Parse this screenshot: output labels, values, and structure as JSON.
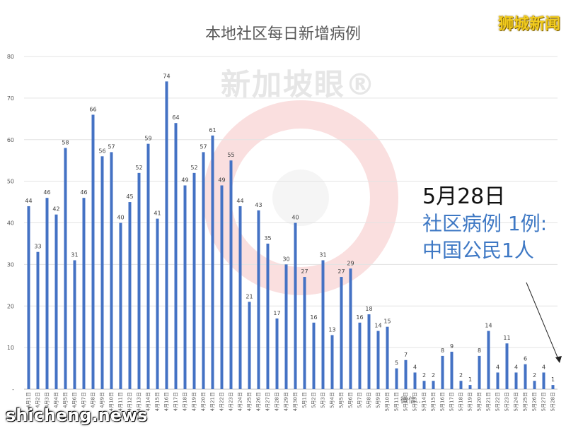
{
  "header": {
    "title": "本地社区每日新增病例",
    "brand": "狮城新闻"
  },
  "watermark": {
    "text": "新加坡眼®"
  },
  "callout": {
    "date": "5月28日",
    "line1": "社区病例 1例:",
    "line2": "中国公民1人"
  },
  "footer": {
    "site": "shicheng.news",
    "wechat": "微信..."
  },
  "colors": {
    "bar": "#4472c4",
    "accent_text": "#3e78c4",
    "brand": "#f2cc1e"
  },
  "chart_data": {
    "type": "bar",
    "title": "本地社区每日新增病例",
    "ylim": [
      0,
      80
    ],
    "yticks": [
      0,
      10,
      20,
      30,
      40,
      50,
      60,
      70,
      80
    ],
    "ytick_labels": [
      "-",
      "10",
      "20",
      "30",
      "40",
      "50",
      "60",
      "70",
      "80"
    ],
    "grid": true,
    "categories": [
      "4月1日",
      "4月2日",
      "4月3日",
      "4月4日",
      "4月5日",
      "4月6日",
      "4月7日",
      "4月8日",
      "4月9日",
      "4月10日",
      "4月11日",
      "4月12日",
      "4月13日",
      "4月14日",
      "4月15日",
      "4月16日",
      "4月17日",
      "4月18日",
      "4月19日",
      "4月20日",
      "4月21日",
      "4月22日",
      "4月23日",
      "4月24日",
      "4月25日",
      "4月26日",
      "4月27日",
      "4月28日",
      "4月29日",
      "4月30日",
      "5月1日",
      "5月2日",
      "5月3日",
      "5月4日",
      "5月5日",
      "5月6日",
      "5月7日",
      "5月8日",
      "5月9日",
      "5月10日",
      "5月11日",
      "5月12日",
      "5月13日",
      "5月14日",
      "5月15日",
      "5月16日",
      "5月17日",
      "5月18日",
      "5月19日",
      "5月20日",
      "5月21日",
      "5月22日",
      "5月23日",
      "5月24日",
      "5月25日",
      "5月26日",
      "5月27日",
      "5月28日"
    ],
    "values": [
      44,
      33,
      46,
      42,
      58,
      31,
      46,
      66,
      56,
      57,
      40,
      45,
      52,
      59,
      41,
      74,
      64,
      49,
      52,
      57,
      61,
      49,
      55,
      44,
      21,
      43,
      35,
      17,
      30,
      40,
      27,
      16,
      31,
      13,
      27,
      29,
      16,
      18,
      14,
      15,
      5,
      7,
      4,
      2,
      2,
      8,
      9,
      2,
      1,
      8,
      14,
      4,
      11,
      4,
      6,
      2,
      4,
      1
    ]
  }
}
